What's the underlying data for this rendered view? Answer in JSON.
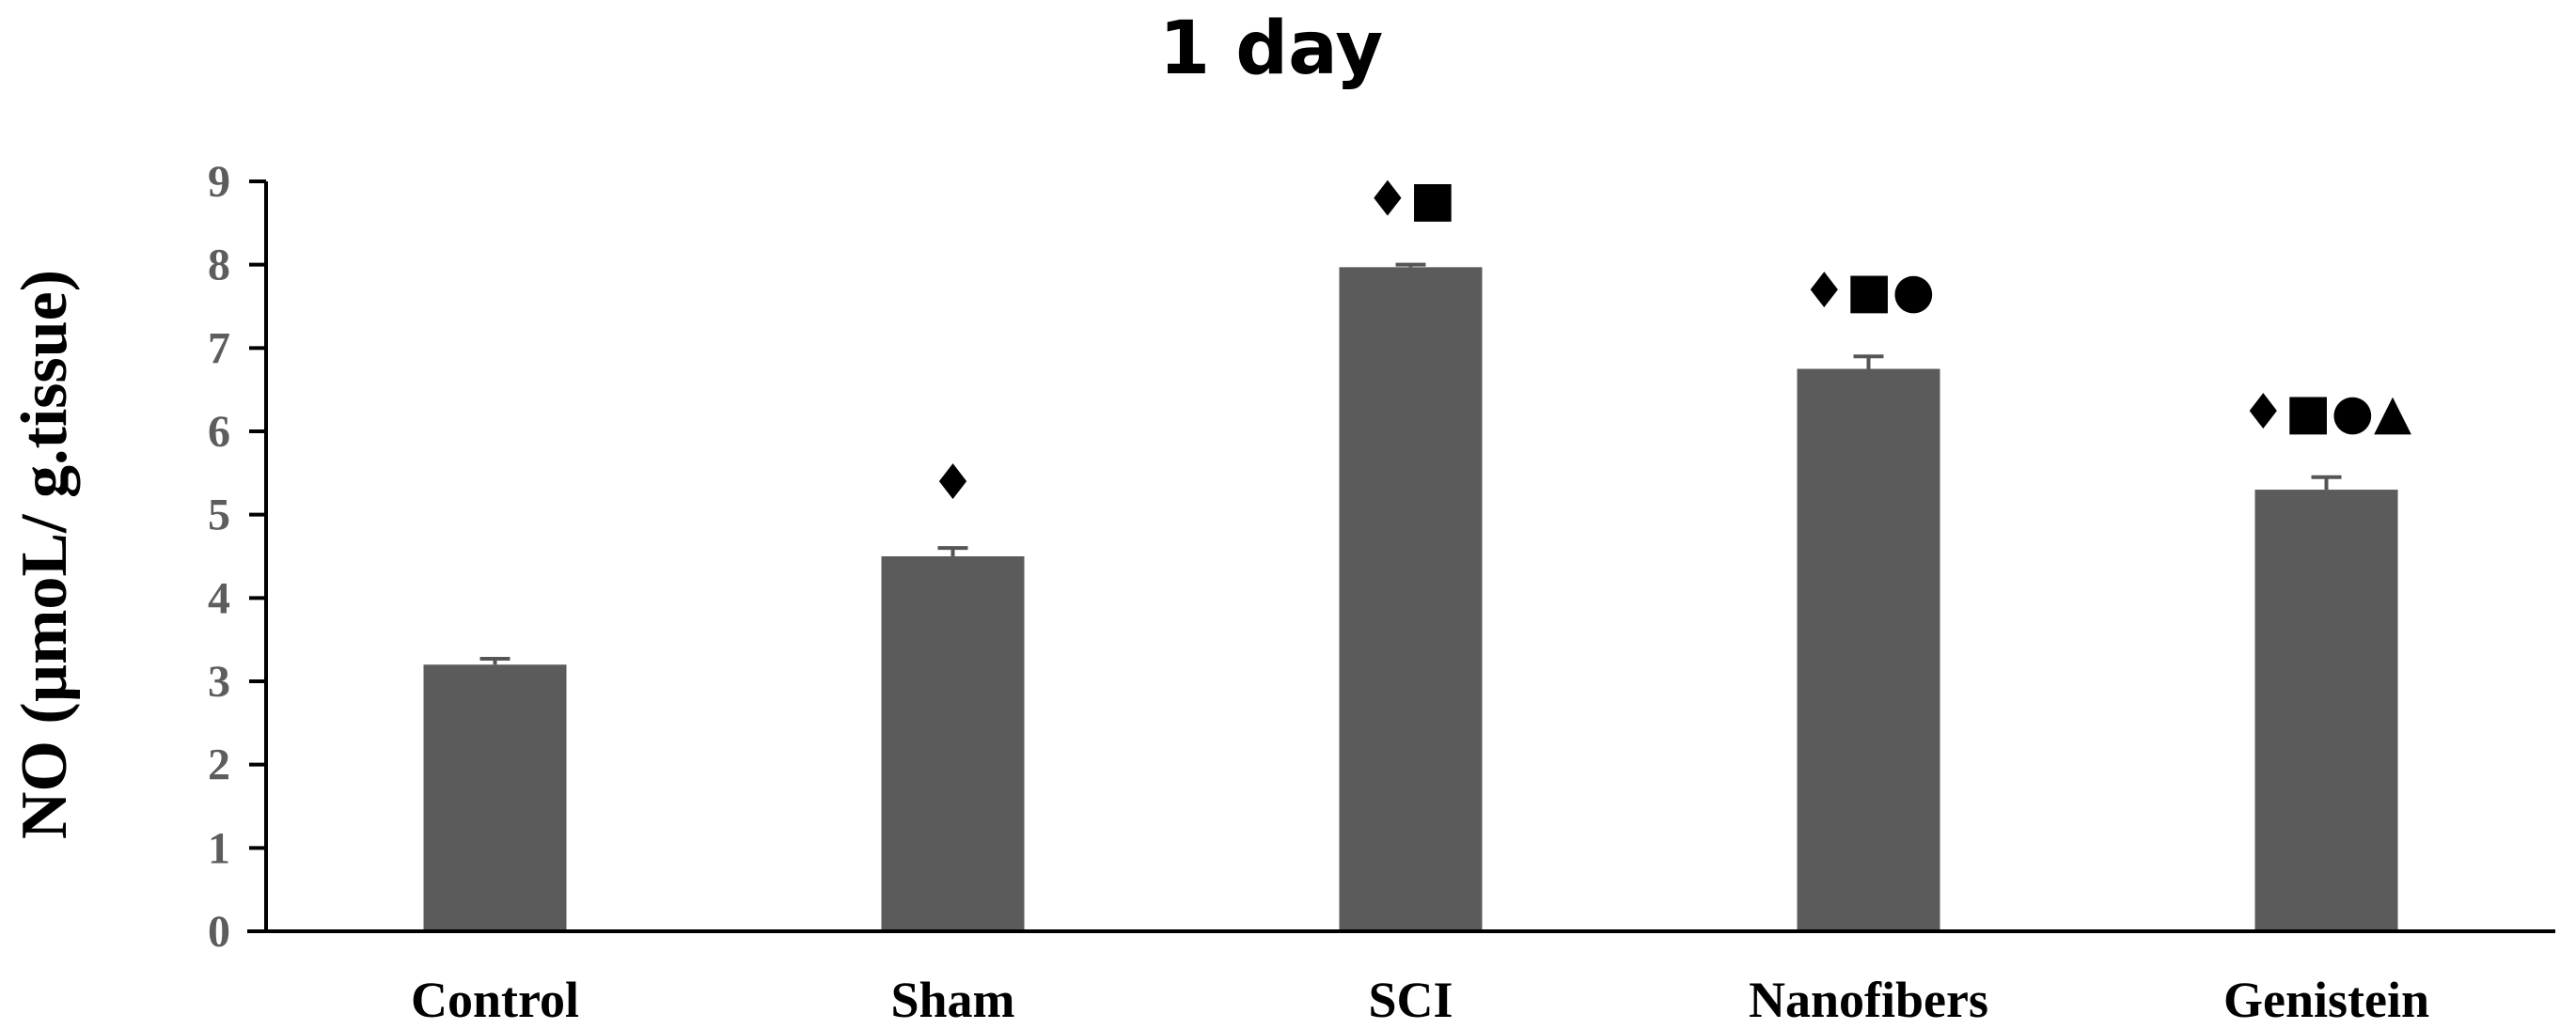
{
  "chart_data": {
    "type": "bar",
    "title": "1 day",
    "ylabel": "NO (µmoL/ g.tissue)",
    "xlabel": "",
    "ylim": [
      0,
      9
    ],
    "yticks": [
      "0",
      "1",
      "2",
      "3",
      "4",
      "5",
      "6",
      "7",
      "8",
      "9"
    ],
    "categories": [
      "Control",
      "Sham",
      "SCI",
      "Nanofibers",
      "Genistein"
    ],
    "values": [
      3.2,
      4.5,
      7.97,
      6.75,
      5.3
    ],
    "errors": [
      0.07,
      0.1,
      0.03,
      0.15,
      0.15
    ],
    "significance_markers": [
      "",
      "♦",
      "♦■",
      "♦■●",
      "♦■●▲"
    ],
    "grid": false,
    "legend": "none",
    "colors": {
      "bar": "#5b5b5b",
      "axis": "#000000",
      "tick_text": "#5d5d5d"
    }
  }
}
